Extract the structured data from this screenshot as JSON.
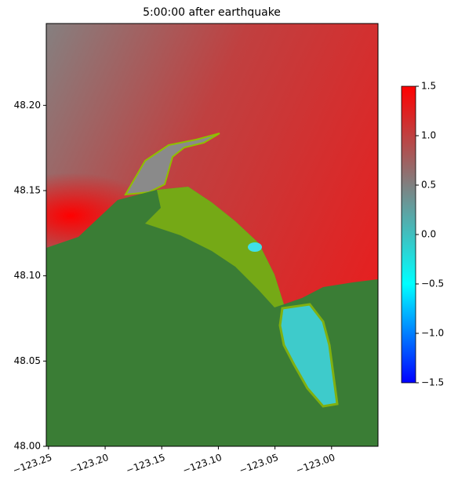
{
  "chart_data": {
    "type": "heatmap",
    "title": "5:00:00 after earthquake",
    "xlim": [
      -123.252,
      -122.959
    ],
    "xticks": [
      {
        "value": -123.25,
        "label": "−123.25"
      },
      {
        "value": -123.2,
        "label": "−123.20"
      },
      {
        "value": -123.15,
        "label": "−123.15"
      },
      {
        "value": -123.1,
        "label": "−123.10"
      },
      {
        "value": -123.05,
        "label": "−123.05"
      },
      {
        "value": -123.0,
        "label": "−123.00"
      }
    ],
    "ylim": [
      48.0,
      48.248
    ],
    "yticks": [
      {
        "value": 48.0,
        "label": "48.00"
      },
      48.05,
      {
        "value": 48.1,
        "label": "48.10"
      },
      48.15,
      {
        "value": 48.2,
        "label": "48.20"
      }
    ],
    "colorbar": {
      "lim": [
        -1.5,
        1.5
      ],
      "ticks": [
        1.5,
        {
          "value": 1.0,
          "label": "1.0"
        },
        0.5,
        {
          "value": 0.0,
          "label": "0.0"
        },
        {
          "value": -0.5,
          "label": "−0.5"
        },
        {
          "value": -1.0,
          "label": "−1.0"
        },
        {
          "value": -1.5,
          "label": "−1.5"
        }
      ],
      "colors": [
        "#0000ff",
        "#00ffff",
        "#808080",
        "#ff0000"
      ]
    }
  }
}
